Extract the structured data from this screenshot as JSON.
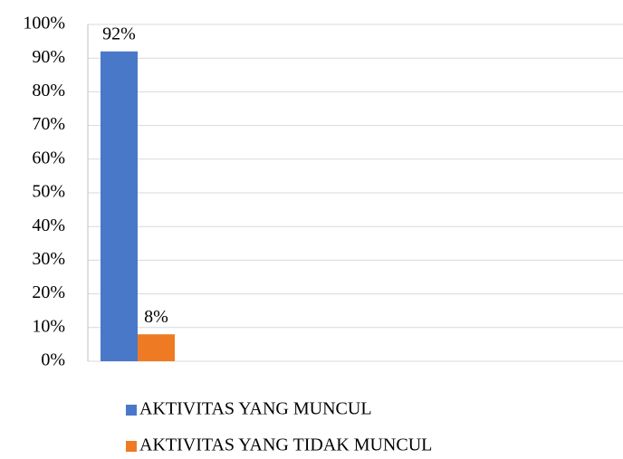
{
  "chart_data": {
    "type": "bar",
    "categories": [
      null
    ],
    "series": [
      {
        "name": "AKTIVITAS YANG MUNCUL",
        "color": "#4a78c8",
        "values": [
          92
        ],
        "value_labels": [
          "92%"
        ]
      },
      {
        "name": "AKTIVITAS YANG TIDAK MUNCUL",
        "color": "#ee7b24",
        "values": [
          8
        ],
        "value_labels": [
          "8%"
        ]
      }
    ],
    "ylim": [
      0,
      100
    ],
    "yticks": [
      {
        "value": 0,
        "label": "0%"
      },
      {
        "value": 10,
        "label": "10%"
      },
      {
        "value": 20,
        "label": "20%"
      },
      {
        "value": 30,
        "label": "30%"
      },
      {
        "value": 40,
        "label": "40%"
      },
      {
        "value": 50,
        "label": "50%"
      },
      {
        "value": 60,
        "label": "60%"
      },
      {
        "value": 70,
        "label": "70%"
      },
      {
        "value": 80,
        "label": "80%"
      },
      {
        "value": 90,
        "label": "90%"
      },
      {
        "value": 100,
        "label": "100%"
      }
    ],
    "grid": true,
    "legend": "bottom"
  }
}
